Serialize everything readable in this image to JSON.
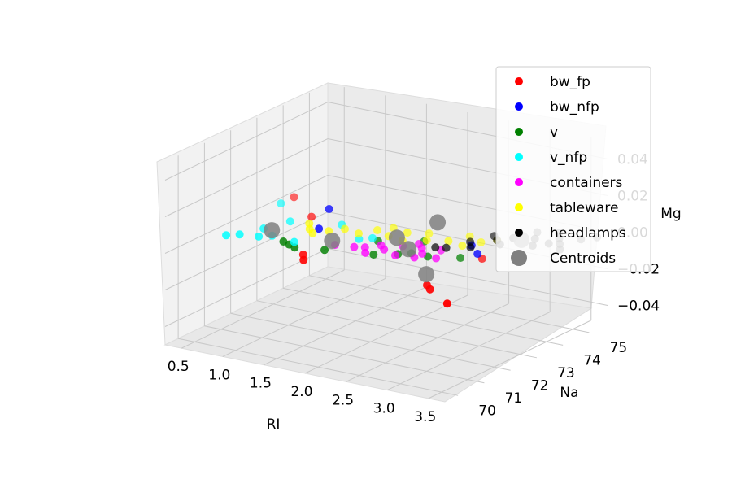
{
  "chart_data": {
    "type": "scatter",
    "projection": "3d",
    "title": "",
    "xlabel": "RI",
    "ylabel": "Na",
    "zlabel": "Mg",
    "xticks": [
      "0.5",
      "1.0",
      "1.5",
      "2.0",
      "2.5",
      "3.0",
      "3.5"
    ],
    "yticks": [
      "70",
      "71",
      "72",
      "73",
      "74",
      "75"
    ],
    "zticks": [
      "−0.04",
      "−0.02",
      "0.00",
      "0.02",
      "0.04"
    ],
    "xlim": [
      0.3,
      3.7
    ],
    "ylim": [
      69.5,
      75.7
    ],
    "zlim": [
      -0.05,
      0.05
    ],
    "grid": true,
    "legend_placement": "top-right",
    "series": [
      {
        "name": "bw_fp",
        "color": "#ff0000",
        "points": [
          {
            "x": 3.6,
            "y": 69.9,
            "z": 0
          },
          {
            "x": 3.2,
            "y": 70.5,
            "z": 0
          },
          {
            "x": 3.1,
            "y": 70.7,
            "z": 0
          },
          {
            "x": 1.6,
            "y": 70.7,
            "z": 0
          },
          {
            "x": 1.5,
            "y": 71.0,
            "z": 0
          },
          {
            "x": 3.1,
            "y": 72.8,
            "z": 0
          },
          {
            "x": 0.9,
            "y": 73.2,
            "z": 0
          },
          {
            "x": 0.4,
            "y": 74.1,
            "z": 0
          }
        ]
      },
      {
        "name": "bw_nfp",
        "color": "#0000ff",
        "points": [
          {
            "x": 3.3,
            "y": 72.0,
            "z": 0.01
          },
          {
            "x": 3.1,
            "y": 72.4,
            "z": 0.01
          },
          {
            "x": 1.5,
            "y": 71.6,
            "z": 0.01
          },
          {
            "x": 1.4,
            "y": 72.3,
            "z": 0.015
          }
        ]
      },
      {
        "name": "v",
        "color": "#008000",
        "points": [
          {
            "x": 2.9,
            "y": 72.6,
            "z": 0
          },
          {
            "x": 2.6,
            "y": 72.3,
            "z": 0
          },
          {
            "x": 2.4,
            "y": 72.3,
            "z": 0
          },
          {
            "x": 2.3,
            "y": 72.1,
            "z": 0
          },
          {
            "x": 2.1,
            "y": 71.8,
            "z": 0
          },
          {
            "x": 1.6,
            "y": 71.5,
            "z": 0
          },
          {
            "x": 1.3,
            "y": 71.3,
            "z": 0
          },
          {
            "x": 1.2,
            "y": 71.4,
            "z": 0
          },
          {
            "x": 2.3,
            "y": 73.1,
            "z": 0
          },
          {
            "x": 1.1,
            "y": 71.5,
            "z": 0
          },
          {
            "x": 1.9,
            "y": 72.6,
            "z": 0
          }
        ]
      },
      {
        "name": "v_nfp",
        "color": "#00ffff",
        "points": [
          {
            "x": 0.6,
            "y": 71.4,
            "z": 0
          },
          {
            "x": 0.8,
            "y": 71.5,
            "z": 0
          },
          {
            "x": 0.9,
            "y": 71.7,
            "z": 0
          },
          {
            "x": 1.2,
            "y": 71.6,
            "z": 0
          },
          {
            "x": 0.7,
            "y": 72.0,
            "z": 0
          },
          {
            "x": 1.7,
            "y": 72.5,
            "z": 0
          },
          {
            "x": 1.8,
            "y": 72.7,
            "z": 0
          },
          {
            "x": 0.8,
            "y": 72.7,
            "z": 0
          },
          {
            "x": 1.3,
            "y": 73.1,
            "z": 0
          },
          {
            "x": 0.4,
            "y": 73.6,
            "z": 0
          },
          {
            "x": 0.5,
            "y": 71.2,
            "z": 0
          }
        ]
      },
      {
        "name": "containers",
        "color": "#ff00ff",
        "points": [
          {
            "x": 2.3,
            "y": 72.0,
            "z": 0
          },
          {
            "x": 2.5,
            "y": 72.4,
            "z": 0
          },
          {
            "x": 2.4,
            "y": 72.7,
            "z": 0
          },
          {
            "x": 2.2,
            "y": 72.6,
            "z": 0
          },
          {
            "x": 2.1,
            "y": 72.2,
            "z": 0
          },
          {
            "x": 2.0,
            "y": 72.4,
            "z": 0
          },
          {
            "x": 1.9,
            "y": 72.1,
            "z": 0
          },
          {
            "x": 2.6,
            "y": 72.8,
            "z": 0
          },
          {
            "x": 2.7,
            "y": 72.3,
            "z": 0
          },
          {
            "x": 1.8,
            "y": 72.0,
            "z": 0
          },
          {
            "x": 2.5,
            "y": 72.1,
            "z": 0
          },
          {
            "x": 2.3,
            "y": 72.9,
            "z": 0
          },
          {
            "x": 2.0,
            "y": 71.8,
            "z": 0
          },
          {
            "x": 1.6,
            "y": 71.9,
            "z": 0
          }
        ]
      },
      {
        "name": "tableware",
        "color": "#ffff00",
        "points": [
          {
            "x": 2.5,
            "y": 73.4,
            "z": 0
          },
          {
            "x": 2.2,
            "y": 73.6,
            "z": 0
          },
          {
            "x": 1.7,
            "y": 73.2,
            "z": 0
          },
          {
            "x": 1.4,
            "y": 72.9,
            "z": 0
          },
          {
            "x": 1.1,
            "y": 72.5,
            "z": 0
          },
          {
            "x": 2.9,
            "y": 74.0,
            "z": 0
          },
          {
            "x": 2.8,
            "y": 73.7,
            "z": 0
          },
          {
            "x": 2.0,
            "y": 73.4,
            "z": 0
          },
          {
            "x": 1.6,
            "y": 72.8,
            "z": 0
          },
          {
            "x": 1.2,
            "y": 72.3,
            "z": 0
          },
          {
            "x": 2.3,
            "y": 73.2,
            "z": 0
          },
          {
            "x": 2.6,
            "y": 73.9,
            "z": 0
          },
          {
            "x": 1.9,
            "y": 73.0,
            "z": 0
          },
          {
            "x": 1.0,
            "y": 72.8,
            "z": 0
          },
          {
            "x": 2.7,
            "y": 73.3,
            "z": 0
          },
          {
            "x": 1.8,
            "y": 73.5,
            "z": 0
          },
          {
            "x": 2.1,
            "y": 72.9,
            "z": 0
          },
          {
            "x": 1.3,
            "y": 72.6,
            "z": 0
          }
        ]
      },
      {
        "name": "headlamps",
        "color": "#000000",
        "points": [
          {
            "x": 3.6,
            "y": 74.2,
            "z": 0
          },
          {
            "x": 3.5,
            "y": 74.5,
            "z": 0
          },
          {
            "x": 3.4,
            "y": 74.4,
            "z": 0
          },
          {
            "x": 3.3,
            "y": 74.1,
            "z": 0
          },
          {
            "x": 3.2,
            "y": 74.5,
            "z": 0
          },
          {
            "x": 3.0,
            "y": 74.3,
            "z": 0
          },
          {
            "x": 2.9,
            "y": 74.0,
            "z": 0
          },
          {
            "x": 3.4,
            "y": 74.8,
            "z": 0
          },
          {
            "x": 3.6,
            "y": 75.0,
            "z": 0
          },
          {
            "x": 2.7,
            "y": 73.6,
            "z": 0
          },
          {
            "x": 2.8,
            "y": 73.3,
            "z": 0
          },
          {
            "x": 2.6,
            "y": 73.0,
            "z": 0
          },
          {
            "x": 3.0,
            "y": 73.8,
            "z": 0
          },
          {
            "x": 3.1,
            "y": 74.9,
            "z": 0
          },
          {
            "x": 3.7,
            "y": 75.3,
            "z": 0
          },
          {
            "x": 2.8,
            "y": 74.2,
            "z": 0
          },
          {
            "x": 3.3,
            "y": 75.1,
            "z": 0
          },
          {
            "x": 2.5,
            "y": 72.9,
            "z": 0
          }
        ]
      },
      {
        "name": "Centroids",
        "color": "#808080",
        "size": "large",
        "points": [
          {
            "x": 2.9,
            "y": 71.3,
            "z": 0
          },
          {
            "x": 2.4,
            "y": 73.3,
            "z": 0.01
          },
          {
            "x": 1.5,
            "y": 72.1,
            "z": 0
          },
          {
            "x": 0.8,
            "y": 72.0,
            "z": 0
          },
          {
            "x": 2.3,
            "y": 72.5,
            "z": 0
          },
          {
            "x": 2.0,
            "y": 73.0,
            "z": 0
          },
          {
            "x": 3.1,
            "y": 74.3,
            "z": 0
          }
        ]
      }
    ]
  }
}
